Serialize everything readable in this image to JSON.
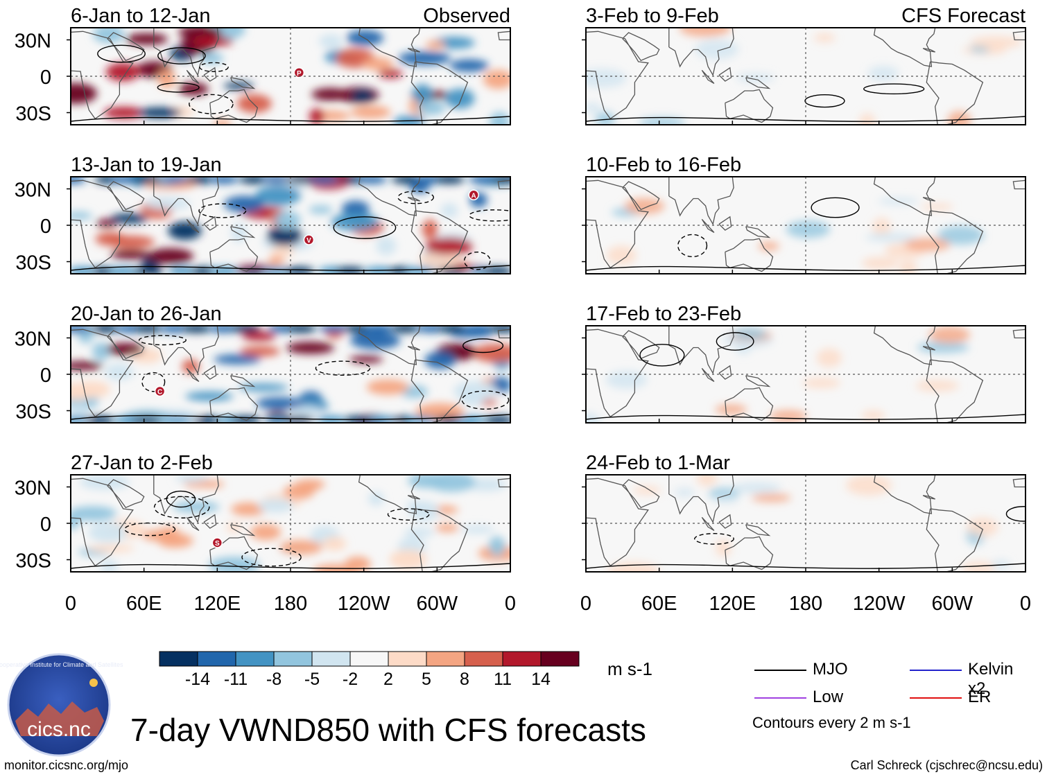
{
  "header": {
    "left_label": "Observed",
    "right_label": "CFS Forecast"
  },
  "observed_panels": [
    {
      "period": "6-Jan to 12-Jan"
    },
    {
      "period": "13-Jan to 19-Jan"
    },
    {
      "period": "20-Jan to 26-Jan"
    },
    {
      "period": "27-Jan to 2-Feb"
    }
  ],
  "forecast_panels": [
    {
      "period": "3-Feb to 9-Feb"
    },
    {
      "period": "10-Feb to 16-Feb"
    },
    {
      "period": "17-Feb to 23-Feb"
    },
    {
      "period": "24-Feb to 1-Mar"
    }
  ],
  "chart_data": {
    "type": "heatmap",
    "title": "7-day VWND850 with CFS forecasts",
    "variable": "VWND850",
    "units": "m s-1",
    "x_ticks": [
      "0",
      "60E",
      "120E",
      "180",
      "120W",
      "60W",
      "0"
    ],
    "y_ticks": [
      "30N",
      "0",
      "30S"
    ],
    "x_range_deg": [
      0,
      360
    ],
    "y_range_deg": [
      -40,
      40
    ],
    "colorbar": {
      "bounds": [
        "-14",
        "-11",
        "-8",
        "-5",
        "-2",
        "2",
        "5",
        "8",
        "11",
        "14"
      ],
      "colors": [
        "#053061",
        "#2166ac",
        "#4393c3",
        "#92c5de",
        "#d1e5f0",
        "#f7f7f7",
        "#fddbc7",
        "#f4a582",
        "#d6604d",
        "#b2182b",
        "#67001f"
      ]
    },
    "contour_interval": "Contours every 2 m s-1",
    "legend": [
      {
        "label": "MJO",
        "color": "#000000"
      },
      {
        "label": "Kelvin x2",
        "color": "#2222cc"
      },
      {
        "label": "Low",
        "color": "#a040e0"
      },
      {
        "label": "ER",
        "color": "#e01010"
      }
    ],
    "markers": [
      {
        "panel": 0,
        "letter": "P",
        "lon": 187,
        "lat": 3
      },
      {
        "panel": 1,
        "letter": "A",
        "lon": 330,
        "lat": 25
      },
      {
        "panel": 1,
        "letter": "V",
        "lon": 195,
        "lat": -12
      },
      {
        "panel": 2,
        "letter": "C",
        "lon": 73,
        "lat": -14
      },
      {
        "panel": 3,
        "letter": "S",
        "lon": 120,
        "lat": -16
      }
    ]
  },
  "logo": {
    "text": "cics.nc",
    "arc_text": "Cooperative Institute for Climate and Satellites"
  },
  "footer": {
    "url": "monitor.cicsnc.org/mjo",
    "credit": "Carl Schreck (cjschrec@ncsu.edu)"
  }
}
